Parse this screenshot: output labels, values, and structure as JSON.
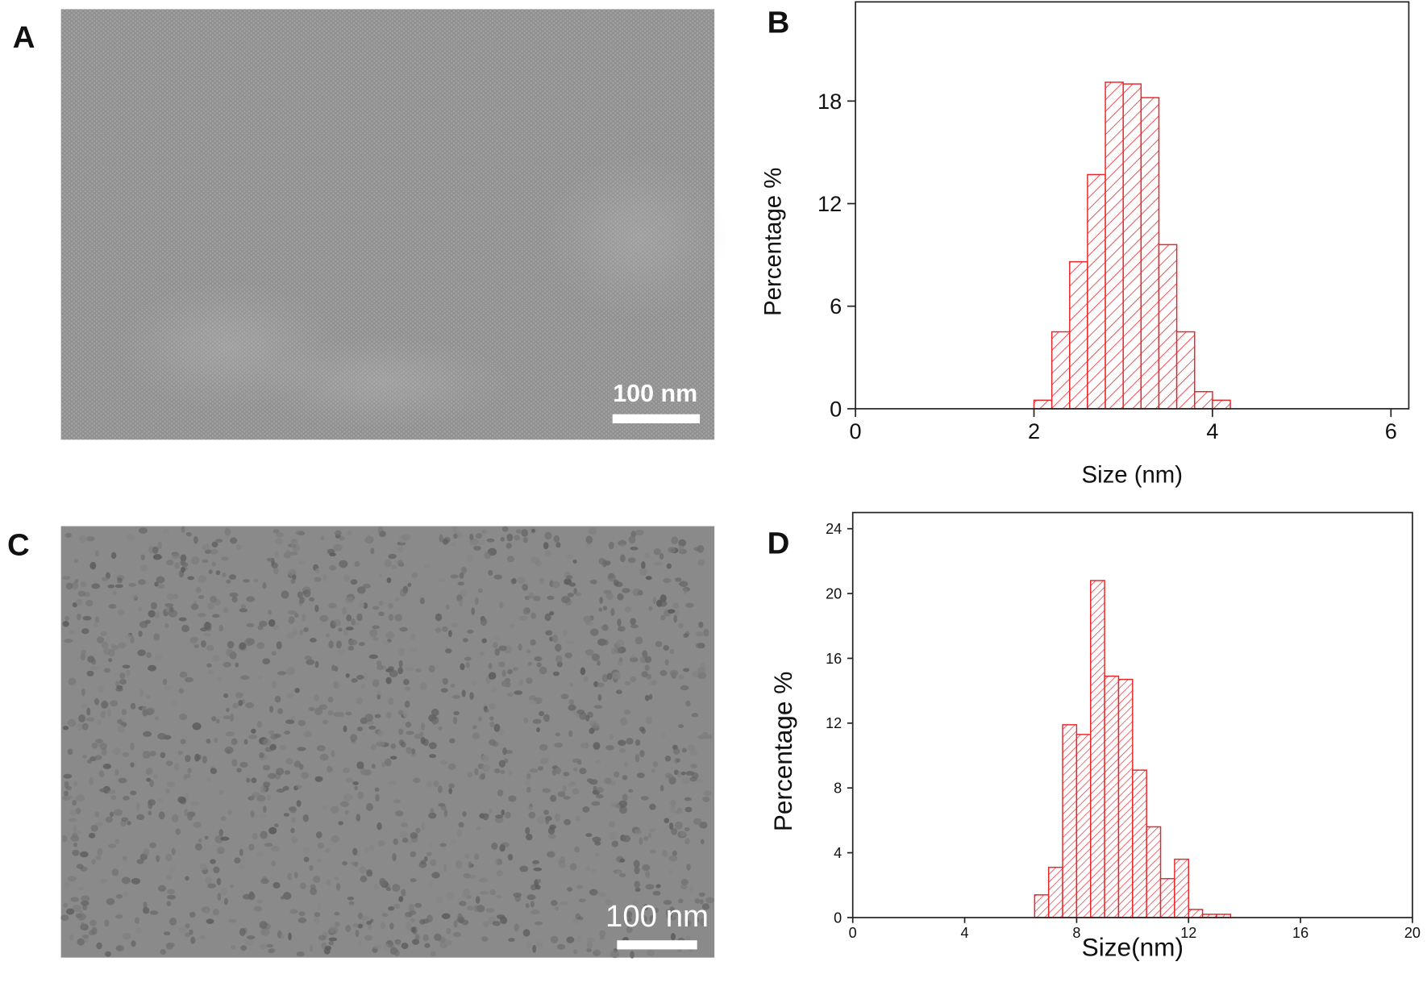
{
  "panels": [
    {
      "label": "A",
      "scale_bar": "100 nm"
    },
    {
      "label": "C",
      "scale_bar": "100 nm"
    }
  ],
  "chart_data": [
    {
      "type": "histogram",
      "panel_label": "B",
      "x_label": "Size (nm)",
      "y_label": "Percentage %",
      "color": "#e8262a",
      "bins": [
        2.0,
        2.2,
        2.4,
        2.6,
        2.8,
        3.0,
        3.2,
        3.4,
        3.6,
        3.8,
        4.0,
        4.2
      ],
      "values": [
        0.5,
        4.5,
        8.6,
        13.7,
        19.1,
        19.0,
        18.2,
        9.6,
        4.5,
        1.0,
        0.5
      ],
      "xlim": [
        0,
        6.2
      ],
      "ylim": [
        0,
        23.8
      ],
      "xticks": [
        0,
        2,
        4,
        6
      ],
      "yticks": [
        0,
        6,
        12,
        18
      ]
    },
    {
      "type": "histogram",
      "panel_label": "D",
      "x_label": "Size(nm)",
      "y_label": "Percentage %",
      "color": "#e8262a",
      "bins": [
        6.5,
        7.0,
        7.5,
        8.0,
        8.5,
        9.0,
        9.5,
        10.0,
        10.5,
        11.0,
        11.5,
        12.0,
        12.5,
        13.0,
        13.5
      ],
      "values": [
        1.4,
        3.1,
        11.9,
        11.3,
        20.8,
        14.9,
        14.7,
        9.1,
        5.6,
        2.4,
        3.6,
        0.5,
        0.2,
        0.2
      ],
      "xlim": [
        0,
        20
      ],
      "ylim": [
        0,
        25
      ],
      "xticks": [
        0,
        4,
        8,
        12,
        16,
        20
      ],
      "yticks": [
        0,
        4,
        8,
        12,
        16,
        20,
        24
      ]
    }
  ]
}
